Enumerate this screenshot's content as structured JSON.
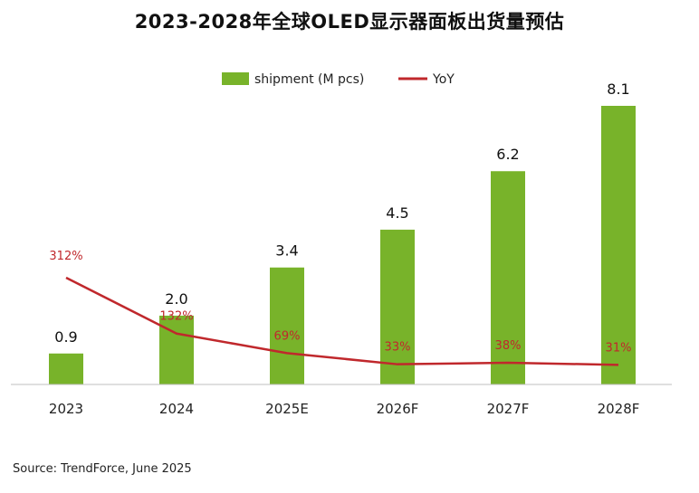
{
  "title": "2023-2028年全球OLED显示器面板出货量预估",
  "source": "Source: TrendForce, June 2025",
  "colors": {
    "bar": "#78b32a",
    "line": "#c0282c",
    "axis": "#bfbfbf"
  },
  "chart_data": {
    "type": "bar",
    "title": "2023-2028年全球OLED显示器面板出货量预估",
    "categories": [
      "2023",
      "2024",
      "2025E",
      "2026F",
      "2027F",
      "2028F"
    ],
    "series": [
      {
        "name": "shipment (M pcs)",
        "type": "bar",
        "values": [
          0.9,
          2.0,
          3.4,
          4.5,
          6.2,
          8.1
        ],
        "labels": [
          "0.9",
          "2.0",
          "3.4",
          "4.5",
          "6.2",
          "8.1"
        ]
      },
      {
        "name": "YoY",
        "type": "line",
        "values": [
          312,
          132,
          69,
          33,
          38,
          31
        ],
        "labels": [
          "312%",
          "132%",
          "69%",
          "33%",
          "38%",
          "31%"
        ]
      }
    ],
    "ylim": [
      0,
      8.1
    ],
    "y2lim": [
      0,
      312
    ],
    "legend": "top-center",
    "grid": false
  }
}
